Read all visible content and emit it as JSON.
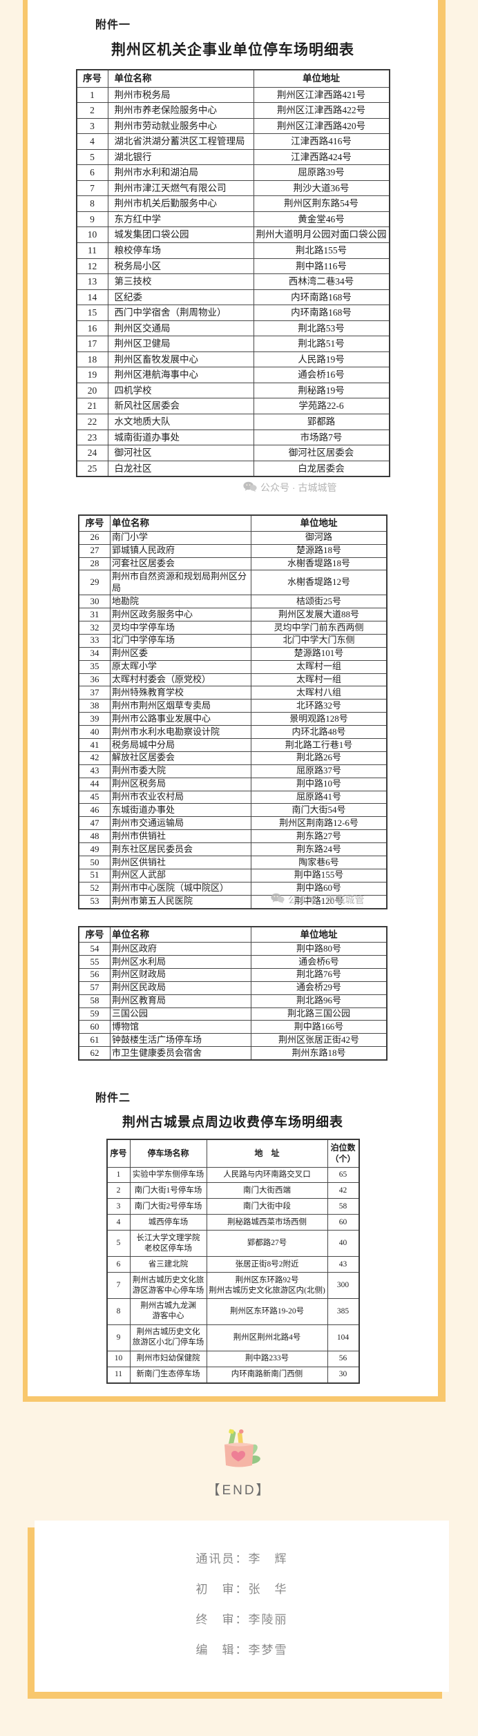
{
  "colors": {
    "accent_orange": "#f8c76d",
    "page_cream": "#fdf4e4",
    "watermark_gray": "#b5b5b5",
    "credits_gray": "#8a8a8a",
    "icon_cup_pink": "#f5b5a6",
    "icon_heart_pink": "#ee7f95",
    "icon_leaf_green": "#a8d49a",
    "icon_pencil_yellow": "#f4d262",
    "icon_pen_green": "#9fcd7e"
  },
  "watermark": {
    "text": "公众号 · 古城城管"
  },
  "attachment1": {
    "label": "附件一",
    "title": "荆州区机关企事业单位停车场明细表",
    "columns": [
      "序号",
      "单位名称",
      "单位地址"
    ],
    "table1_rows": [
      [
        "1",
        "荆州市税务局",
        "荆州区江津西路421号"
      ],
      [
        "2",
        "荆州市养老保险服务中心",
        "荆州区江津西路422号"
      ],
      [
        "3",
        "荆州市劳动就业服务中心",
        "荆州区江津西路420号"
      ],
      [
        "4",
        "湖北省洪湖分蓄洪区工程管理局",
        "江津西路416号"
      ],
      [
        "5",
        "湖北银行",
        "江津西路424号"
      ],
      [
        "6",
        "荆州市水利和湖泊局",
        "屈原路39号"
      ],
      [
        "7",
        "荆州市津江天燃气有限公司",
        "荆沙大道36号"
      ],
      [
        "8",
        "荆州市机关后勤服务中心",
        "荆州区荆东路54号"
      ],
      [
        "9",
        "东方红中学",
        "黄金堂46号"
      ],
      [
        "10",
        "城发集团口袋公园",
        "荆州大道明月公园对面口袋公园"
      ],
      [
        "11",
        "粮校停车场",
        "荆北路155号"
      ],
      [
        "12",
        "税务局小区",
        "荆中路116号"
      ],
      [
        "13",
        "第三技校",
        "西林湾二巷34号"
      ],
      [
        "14",
        "区纪委",
        "内环南路168号"
      ],
      [
        "15",
        "西门中学宿舍（荆周物业）",
        "内环南路168号"
      ],
      [
        "16",
        "荆州区交通局",
        "荆北路53号"
      ],
      [
        "17",
        "荆州区卫健局",
        "荆北路51号"
      ],
      [
        "18",
        "荆州区畜牧发展中心",
        "人民路19号"
      ],
      [
        "19",
        "荆州区港航海事中心",
        "通会桥16号"
      ],
      [
        "20",
        "四机学校",
        "荆秘路19号"
      ],
      [
        "21",
        "新风社区居委会",
        "学苑路22-6"
      ],
      [
        "22",
        "水文地质大队",
        "郢都路"
      ],
      [
        "23",
        "城南街道办事处",
        "市场路7号"
      ],
      [
        "24",
        "御河社区",
        "御河社区居委会"
      ],
      [
        "25",
        "白龙社区",
        "白龙居委会"
      ]
    ],
    "table2_rows": [
      [
        "26",
        "南门小学",
        "御河路"
      ],
      [
        "27",
        "郢城镇人民政府",
        "楚源路18号"
      ],
      [
        "28",
        "河套社区居委会",
        "水榭香堤路18号"
      ],
      [
        "29",
        "荆州市自然资源和规划局荆州区分局",
        "水榭香堤路12号"
      ],
      [
        "30",
        "地勘院",
        "桔颂街25号"
      ],
      [
        "31",
        "荆州区政务服务中心",
        "荆州区发展大道88号"
      ],
      [
        "32",
        "灵均中学停车场",
        "灵均中学门前东西两侧"
      ],
      [
        "33",
        "北门中学停车场",
        "北门中学大门东侧"
      ],
      [
        "34",
        "荆州区委",
        "楚源路101号"
      ],
      [
        "35",
        "原太晖小学",
        "太晖村一组"
      ],
      [
        "36",
        "太晖村村委会（原党校）",
        "太晖村一组"
      ],
      [
        "37",
        "荆州特殊教育学校",
        "太晖村八组"
      ],
      [
        "38",
        "荆州市荆州区烟草专卖局",
        "北环路32号"
      ],
      [
        "39",
        "荆州市公路事业发展中心",
        "景明观路128号"
      ],
      [
        "40",
        "荆州市水利水电勘察设计院",
        "内环北路48号"
      ],
      [
        "41",
        "税务局城中分局",
        "荆北路工行巷1号"
      ],
      [
        "42",
        "解放社区居委会",
        "荆北路26号"
      ],
      [
        "43",
        "荆州市委大院",
        "屈原路37号"
      ],
      [
        "44",
        "荆州区税务局",
        "荆中路10号"
      ],
      [
        "45",
        "荆州市农业农村局",
        "屈原路41号"
      ],
      [
        "46",
        "东城街道办事处",
        "南门大街54号"
      ],
      [
        "47",
        "荆州市交通运输局",
        "荆州区荆南路12-6号"
      ],
      [
        "48",
        "荆州市供销社",
        "荆东路27号"
      ],
      [
        "49",
        "荆东社区居民委员会",
        "荆东路24号"
      ],
      [
        "50",
        "荆州区供销社",
        "陶家巷6号"
      ],
      [
        "51",
        "荆州区人武部",
        "荆中路155号"
      ],
      [
        "52",
        "荆州市中心医院（城中院区）",
        "荆中路60号"
      ],
      [
        "53",
        "荆州市第五人民医院",
        "荆中路120号"
      ]
    ],
    "table3_rows": [
      [
        "54",
        "荆州区政府",
        "荆中路80号"
      ],
      [
        "55",
        "荆州区水利局",
        "通会桥6号"
      ],
      [
        "56",
        "荆州区财政局",
        "荆北路76号"
      ],
      [
        "57",
        "荆州区民政局",
        "通会桥29号"
      ],
      [
        "58",
        "荆州区教育局",
        "荆北路96号"
      ],
      [
        "59",
        "三国公园",
        "荆北路三国公园"
      ],
      [
        "60",
        "博物馆",
        "荆中路166号"
      ],
      [
        "61",
        "钟鼓楼生活广场停车场",
        "荆州区张居正街42号"
      ],
      [
        "62",
        "市卫生健康委员会宿舍",
        "荆州东路18号"
      ]
    ]
  },
  "attachment2": {
    "label": "附件二",
    "title": "荆州古城景点周边收费停车场明细表",
    "columns": [
      "序号",
      "停车场名称",
      "地　址",
      "泊位数\n（个）"
    ],
    "rows": [
      [
        "1",
        "实验中学东侧停车场",
        "人民路与内环南路交叉口",
        "65"
      ],
      [
        "2",
        "南门大街1号停车场",
        "南门大街西端",
        "42"
      ],
      [
        "3",
        "南门大街2号停车场",
        "南门大街中段",
        "58"
      ],
      [
        "4",
        "城西停车场",
        "荆秘路城西菜市场西侧",
        "60"
      ],
      [
        "5",
        "长江大学文理学院\n老校区停车场",
        "郢都路27号",
        "40"
      ],
      [
        "6",
        "省三建北院",
        "张居正街8号2附近",
        "43"
      ],
      [
        "7",
        "荆州古城历史文化旅\n游区游客中心停车场",
        "荆州区东环路92号\n荆州古城历史文化旅游区内(北侧)",
        "300"
      ],
      [
        "8",
        "荆州古城九龙渊\n游客中心",
        "荆州区东环路19-20号",
        "385"
      ],
      [
        "9",
        "荆州古城历史文化\n旅游区小北门停车场",
        "荆州区荆州北路4号",
        "104"
      ],
      [
        "10",
        "荆州市妇幼保健院",
        "荆中路233号",
        "56"
      ],
      [
        "11",
        "新南门生态停车场",
        "内环南路新南门西侧",
        "30"
      ]
    ]
  },
  "end_marker": {
    "text": "【END】"
  },
  "credits": {
    "lines": [
      "通讯员：李　辉",
      "初　审：张　华",
      "终　审：李陵丽",
      "编　辑：李梦雪"
    ]
  }
}
